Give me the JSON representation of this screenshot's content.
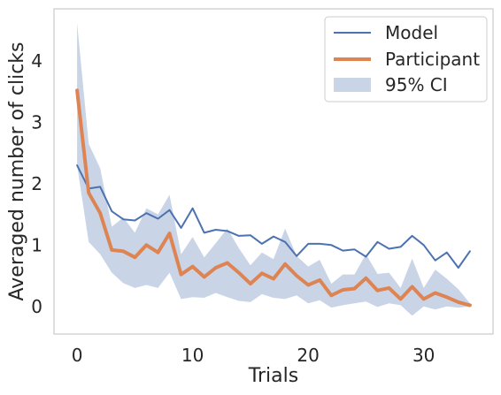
{
  "chart_data": {
    "type": "line",
    "xlabel": "Trials",
    "ylabel": "Averaged number of clicks",
    "xlim": [
      -2.0,
      36.0
    ],
    "ylim": [
      -0.45,
      4.85
    ],
    "xticks": [
      0,
      10,
      20,
      30
    ],
    "yticks": [
      0,
      1,
      2,
      3,
      4
    ],
    "grid": false,
    "legend_position": "top-right",
    "x": [
      0,
      1,
      2,
      3,
      4,
      5,
      6,
      7,
      8,
      9,
      10,
      11,
      12,
      13,
      14,
      15,
      16,
      17,
      18,
      19,
      20,
      21,
      22,
      23,
      24,
      25,
      26,
      27,
      28,
      29,
      30,
      31,
      32,
      33,
      34
    ],
    "series": [
      {
        "name": "Model",
        "color": "#4c72b0",
        "values": [
          2.3,
          1.92,
          1.95,
          1.55,
          1.42,
          1.4,
          1.52,
          1.43,
          1.57,
          1.28,
          1.6,
          1.2,
          1.25,
          1.23,
          1.15,
          1.16,
          1.02,
          1.14,
          1.05,
          0.82,
          1.02,
          1.02,
          1.0,
          0.91,
          0.93,
          0.81,
          1.05,
          0.94,
          0.97,
          1.15,
          1.0,
          0.75,
          0.88,
          0.63,
          0.9
        ]
      },
      {
        "name": "Participant",
        "color": "#dd8452",
        "values": [
          3.52,
          1.85,
          1.52,
          0.92,
          0.9,
          0.8,
          1.0,
          0.88,
          1.19,
          0.52,
          0.65,
          0.48,
          0.63,
          0.71,
          0.55,
          0.37,
          0.54,
          0.45,
          0.69,
          0.5,
          0.35,
          0.43,
          0.18,
          0.27,
          0.29,
          0.46,
          0.26,
          0.3,
          0.12,
          0.32,
          0.12,
          0.22,
          0.15,
          0.07,
          0.02
        ]
      }
    ],
    "ci": {
      "name": "95% CI",
      "color": "#4c72b0",
      "lower": [
        2.3,
        1.05,
        0.85,
        0.55,
        0.38,
        0.3,
        0.35,
        0.3,
        0.55,
        0.12,
        0.15,
        0.14,
        0.22,
        0.15,
        0.09,
        0.07,
        0.2,
        0.14,
        0.12,
        0.18,
        0.05,
        0.1,
        -0.02,
        0.02,
        0.05,
        0.08,
        -0.01,
        0.05,
        0.02,
        -0.15,
        0.0,
        -0.05,
        0.0,
        -0.02,
        0.0
      ],
      "upper": [
        4.62,
        2.65,
        2.25,
        1.3,
        1.45,
        1.2,
        1.6,
        1.5,
        1.82,
        0.85,
        1.13,
        0.8,
        1.03,
        1.27,
        0.95,
        0.67,
        0.88,
        0.77,
        1.27,
        0.82,
        0.65,
        0.76,
        0.37,
        0.52,
        0.52,
        0.85,
        0.53,
        0.55,
        0.3,
        0.78,
        0.3,
        0.6,
        0.45,
        0.28,
        0.05
      ]
    }
  }
}
